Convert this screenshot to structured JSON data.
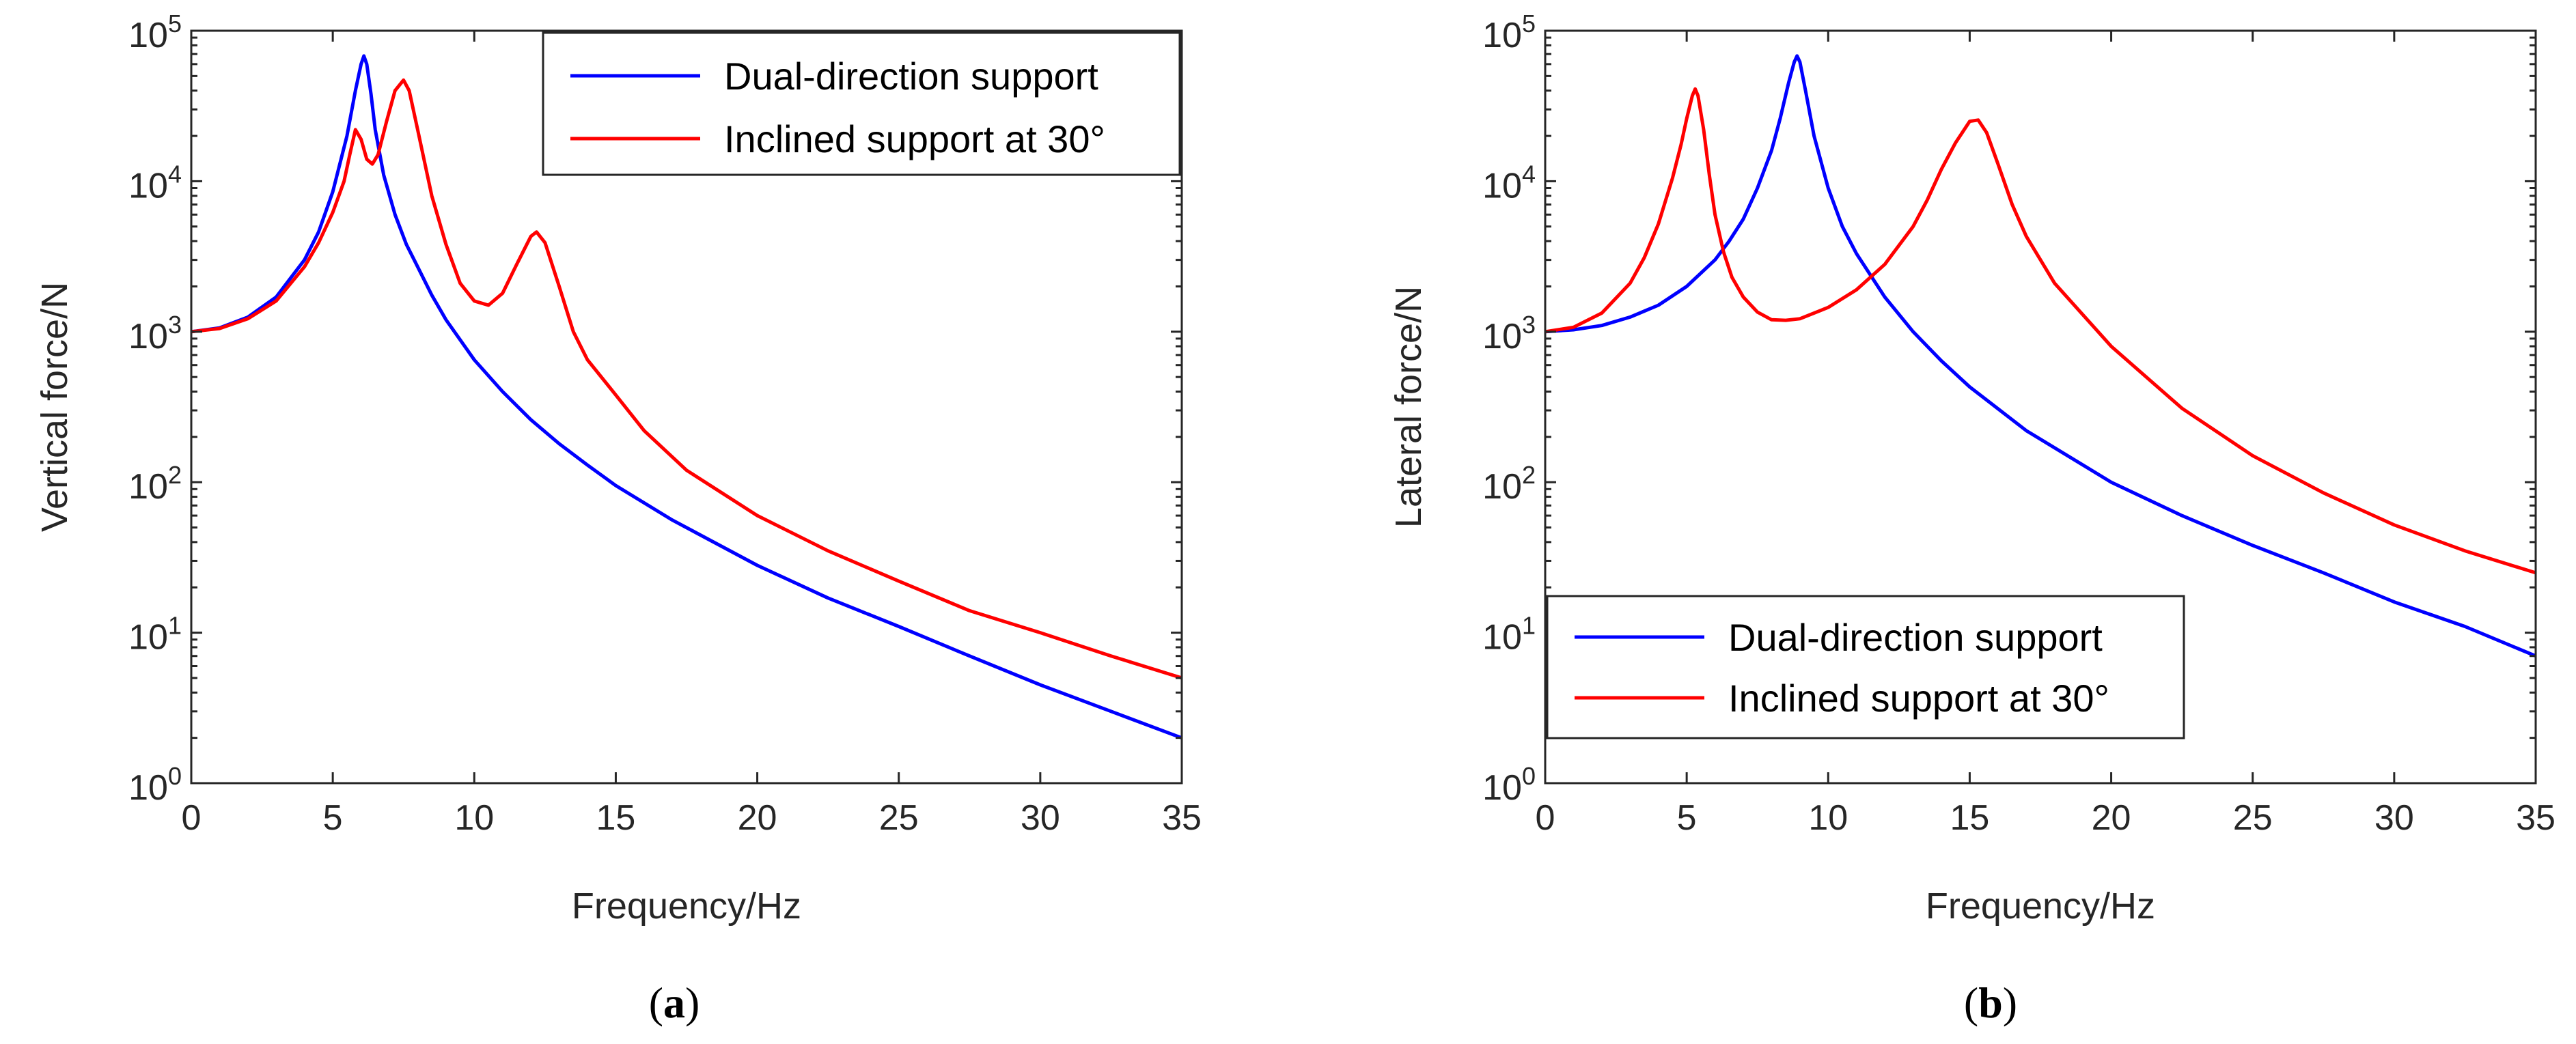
{
  "chart_data": [
    {
      "type": "line",
      "panel": "a",
      "caption_open": "(",
      "caption_letter": "a",
      "caption_close": ")",
      "xlabel": "Frequency/Hz",
      "ylabel": "Vertical force/N",
      "yscale": "log",
      "xlim": [
        0,
        35
      ],
      "ylim": [
        1,
        100000
      ],
      "x_ticks": [
        "0",
        "5",
        "10",
        "15",
        "20",
        "25",
        "30",
        "35"
      ],
      "y_ticks": [
        {
          "base": "10",
          "exp": "0"
        },
        {
          "base": "10",
          "exp": "1"
        },
        {
          "base": "10",
          "exp": "2"
        },
        {
          "base": "10",
          "exp": "3"
        },
        {
          "base": "10",
          "exp": "4"
        },
        {
          "base": "10",
          "exp": "5"
        }
      ],
      "legend_position": "top-right",
      "series": [
        {
          "name": "Dual-direction support",
          "color": "#0000ff",
          "x": [
            0,
            1,
            2,
            3,
            4,
            4.5,
            5,
            5.5,
            5.8,
            6.0,
            6.1,
            6.2,
            6.35,
            6.5,
            6.8,
            7.2,
            7.6,
            8,
            8.5,
            9,
            10,
            11,
            12,
            13,
            14,
            15,
            17,
            20,
            22.5,
            25,
            27.5,
            30,
            32.5,
            35
          ],
          "y": [
            1000,
            1060,
            1250,
            1700,
            3000,
            4600,
            8500,
            20000,
            40000,
            60000,
            68000,
            60000,
            38000,
            22000,
            11000,
            6000,
            3800,
            2700,
            1750,
            1200,
            650,
            400,
            260,
            180,
            130,
            95,
            56,
            28,
            17,
            11,
            7,
            4.5,
            3,
            2
          ]
        },
        {
          "name": "Inclined support at 30°",
          "color": "#ff0000",
          "x": [
            0,
            1,
            2,
            3,
            4,
            4.5,
            5,
            5.4,
            5.6,
            5.8,
            6.0,
            6.2,
            6.4,
            6.6,
            6.9,
            7.2,
            7.5,
            7.7,
            8,
            8.5,
            9,
            9.5,
            10,
            10.5,
            11,
            11.5,
            12,
            12.2,
            12.5,
            13,
            13.5,
            14,
            15,
            16,
            17.5,
            20,
            22.5,
            25,
            27.5,
            30,
            32.5,
            35
          ],
          "y": [
            1000,
            1050,
            1220,
            1600,
            2700,
            3900,
            6200,
            10000,
            15000,
            22000,
            19000,
            14000,
            13000,
            15000,
            25000,
            40000,
            47000,
            40000,
            22000,
            8000,
            3800,
            2100,
            1600,
            1500,
            1800,
            2800,
            4300,
            4600,
            3900,
            2000,
            1000,
            650,
            380,
            220,
            120,
            60,
            35,
            22,
            14,
            10,
            7,
            5
          ]
        }
      ]
    },
    {
      "type": "line",
      "panel": "b",
      "caption_open": "(",
      "caption_letter": "b",
      "caption_close": ")",
      "xlabel": "Frequency/Hz",
      "ylabel": "Lateral force/N",
      "yscale": "log",
      "xlim": [
        0,
        35
      ],
      "ylim": [
        1,
        100000
      ],
      "x_ticks": [
        "0",
        "5",
        "10",
        "15",
        "20",
        "25",
        "30",
        "35"
      ],
      "y_ticks": [
        {
          "base": "10",
          "exp": "0"
        },
        {
          "base": "10",
          "exp": "1"
        },
        {
          "base": "10",
          "exp": "2"
        },
        {
          "base": "10",
          "exp": "3"
        },
        {
          "base": "10",
          "exp": "4"
        },
        {
          "base": "10",
          "exp": "5"
        }
      ],
      "legend_position": "bottom-left",
      "series": [
        {
          "name": "Dual-direction support",
          "color": "#0000ff",
          "x": [
            0,
            1,
            2,
            3,
            4,
            5,
            6,
            6.5,
            7,
            7.5,
            8,
            8.3,
            8.6,
            8.8,
            8.9,
            9.0,
            9.2,
            9.5,
            10,
            10.5,
            11,
            12,
            13,
            14,
            15,
            17,
            20,
            22.5,
            25,
            27.5,
            30,
            32.5,
            35
          ],
          "y": [
            1000,
            1030,
            1100,
            1250,
            1500,
            2000,
            3000,
            4000,
            5600,
            9000,
            16000,
            26000,
            45000,
            62000,
            68000,
            62000,
            40000,
            20000,
            9000,
            5000,
            3300,
            1700,
            1000,
            640,
            430,
            220,
            100,
            60,
            38,
            25,
            16,
            11,
            7
          ]
        },
        {
          "name": "Inclined support at 30°",
          "color": "#ff0000",
          "x": [
            0,
            1,
            2,
            3,
            3.5,
            4,
            4.5,
            4.8,
            5.0,
            5.2,
            5.3,
            5.4,
            5.6,
            5.8,
            6.0,
            6.3,
            6.6,
            7,
            7.5,
            8,
            8.5,
            9,
            10,
            11,
            12,
            13,
            13.5,
            14,
            14.5,
            15,
            15.3,
            15.6,
            16,
            16.5,
            17,
            18,
            20,
            22.5,
            25,
            27.5,
            30,
            32.5,
            35
          ],
          "y": [
            1000,
            1070,
            1330,
            2100,
            3100,
            5200,
            10500,
            17500,
            26000,
            37000,
            41000,
            37000,
            22000,
            11000,
            6000,
            3400,
            2300,
            1700,
            1350,
            1200,
            1190,
            1220,
            1450,
            1900,
            2800,
            5000,
            7500,
            12000,
            18000,
            25000,
            25500,
            21000,
            13000,
            7000,
            4300,
            2100,
            800,
            310,
            150,
            85,
            52,
            35,
            25
          ]
        }
      ]
    }
  ]
}
